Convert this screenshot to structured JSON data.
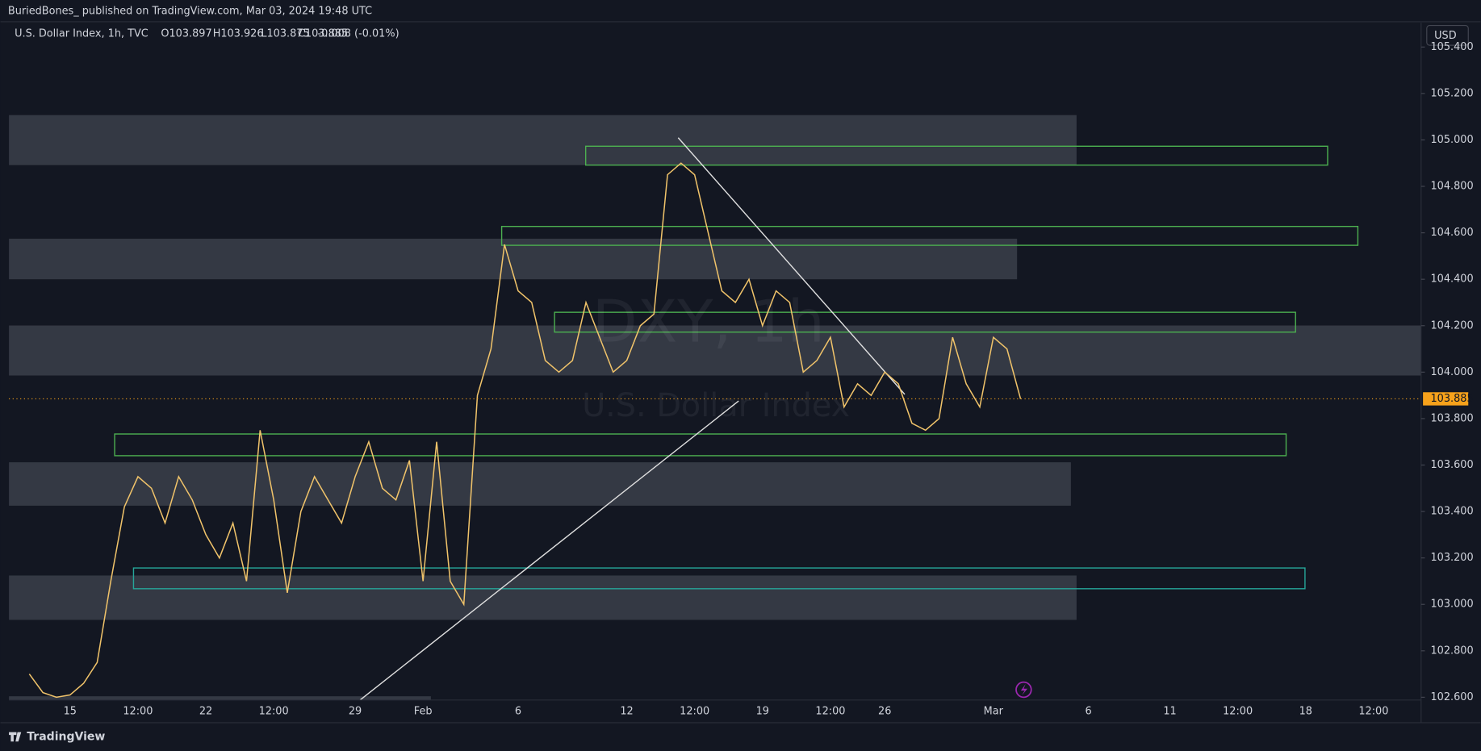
{
  "header": {
    "published": "BuriedBones_ published on TradingView.com, Mar 03, 2024 19:48 UTC",
    "symbol": "U.S. Dollar Index, 1h, TVC",
    "ohlc": [
      "O103.897",
      "H103.926",
      "L103.875",
      "C103.885",
      "-0.008 (-0.01%)"
    ],
    "currency": "USD",
    "watermark": "DXY, 1h",
    "watermark_sub": "U.S. Dollar Index",
    "footer": "TradingView"
  },
  "chart_data": {
    "type": "line",
    "categories": [
      null,
      null,
      null,
      null,
      "15",
      null,
      null,
      null,
      null,
      "12:00",
      null,
      null,
      null,
      null,
      "22",
      null,
      null,
      null,
      null,
      "12:00",
      null,
      null,
      null,
      null,
      null,
      "29",
      null,
      null,
      null,
      null,
      "Feb",
      null,
      null,
      null,
      null,
      null,
      null,
      "6",
      null,
      null,
      null,
      null,
      null,
      null,
      null,
      "12",
      null,
      null,
      null,
      null,
      "12:00",
      null,
      null,
      null,
      null,
      "19",
      null,
      null,
      null,
      null,
      "12:00",
      null,
      null,
      null,
      "26",
      null,
      null,
      null,
      null,
      null,
      null,
      null,
      "Mar",
      null,
      null,
      null,
      null,
      null,
      null,
      "6",
      null,
      null,
      null,
      null,
      null,
      "11",
      null,
      null,
      null,
      null,
      "12:00",
      null,
      null,
      null,
      null,
      "18",
      null,
      null,
      null,
      null,
      "12:00",
      null,
      null,
      null
    ],
    "series": [
      {
        "name": "DXY",
        "color": "#f0c36a",
        "values": [
          null,
          102.7,
          102.62,
          102.6,
          102.61,
          102.66,
          102.75,
          103.1,
          103.42,
          103.55,
          103.5,
          103.35,
          103.55,
          103.45,
          103.3,
          103.2,
          103.35,
          103.1,
          103.75,
          103.45,
          103.05,
          103.4,
          103.55,
          103.45,
          103.35,
          103.55,
          103.7,
          103.5,
          103.45,
          103.62,
          103.1,
          103.7,
          103.1,
          103.0,
          103.9,
          104.1,
          104.55,
          104.35,
          104.3,
          104.05,
          104.0,
          104.05,
          104.3,
          104.15,
          104.0,
          104.05,
          104.2,
          104.25,
          104.85,
          104.9,
          104.85,
          104.6,
          104.35,
          104.3,
          104.4,
          104.2,
          104.35,
          104.3,
          104.0,
          104.05,
          104.15,
          103.85,
          103.95,
          103.9,
          104.0,
          103.95,
          103.78,
          103.75,
          103.8,
          104.15,
          103.95,
          103.85,
          104.15,
          104.1,
          103.885,
          null,
          null,
          null,
          null,
          null,
          null,
          null,
          null,
          null,
          null,
          null,
          null,
          null,
          null,
          null,
          null,
          null,
          null,
          null,
          null,
          null,
          null,
          null,
          null,
          null,
          null,
          null,
          null,
          null
        ]
      }
    ],
    "ylim": [
      102.588,
      105.505
    ],
    "yticks": [
      {
        "value": 102.6,
        "label": "102.600"
      },
      {
        "value": 102.8,
        "label": "102.800"
      },
      {
        "value": 103.0,
        "label": "103.000"
      },
      {
        "value": 103.2,
        "label": "103.200"
      },
      {
        "value": 103.4,
        "label": "103.400"
      },
      {
        "value": 103.6,
        "label": "103.600"
      },
      {
        "value": 103.8,
        "label": "103.800"
      },
      {
        "value": 104.0,
        "label": "104.000"
      },
      {
        "value": 104.2,
        "label": "104.200"
      },
      {
        "value": 104.4,
        "label": "104.400"
      },
      {
        "value": 104.6,
        "label": "104.600"
      },
      {
        "value": 104.8,
        "label": "104.800"
      },
      {
        "value": 105.0,
        "label": "105.000"
      },
      {
        "value": 105.2,
        "label": "105.200"
      },
      {
        "value": 105.4,
        "label": "105.400"
      }
    ],
    "grid": false
  }
}
